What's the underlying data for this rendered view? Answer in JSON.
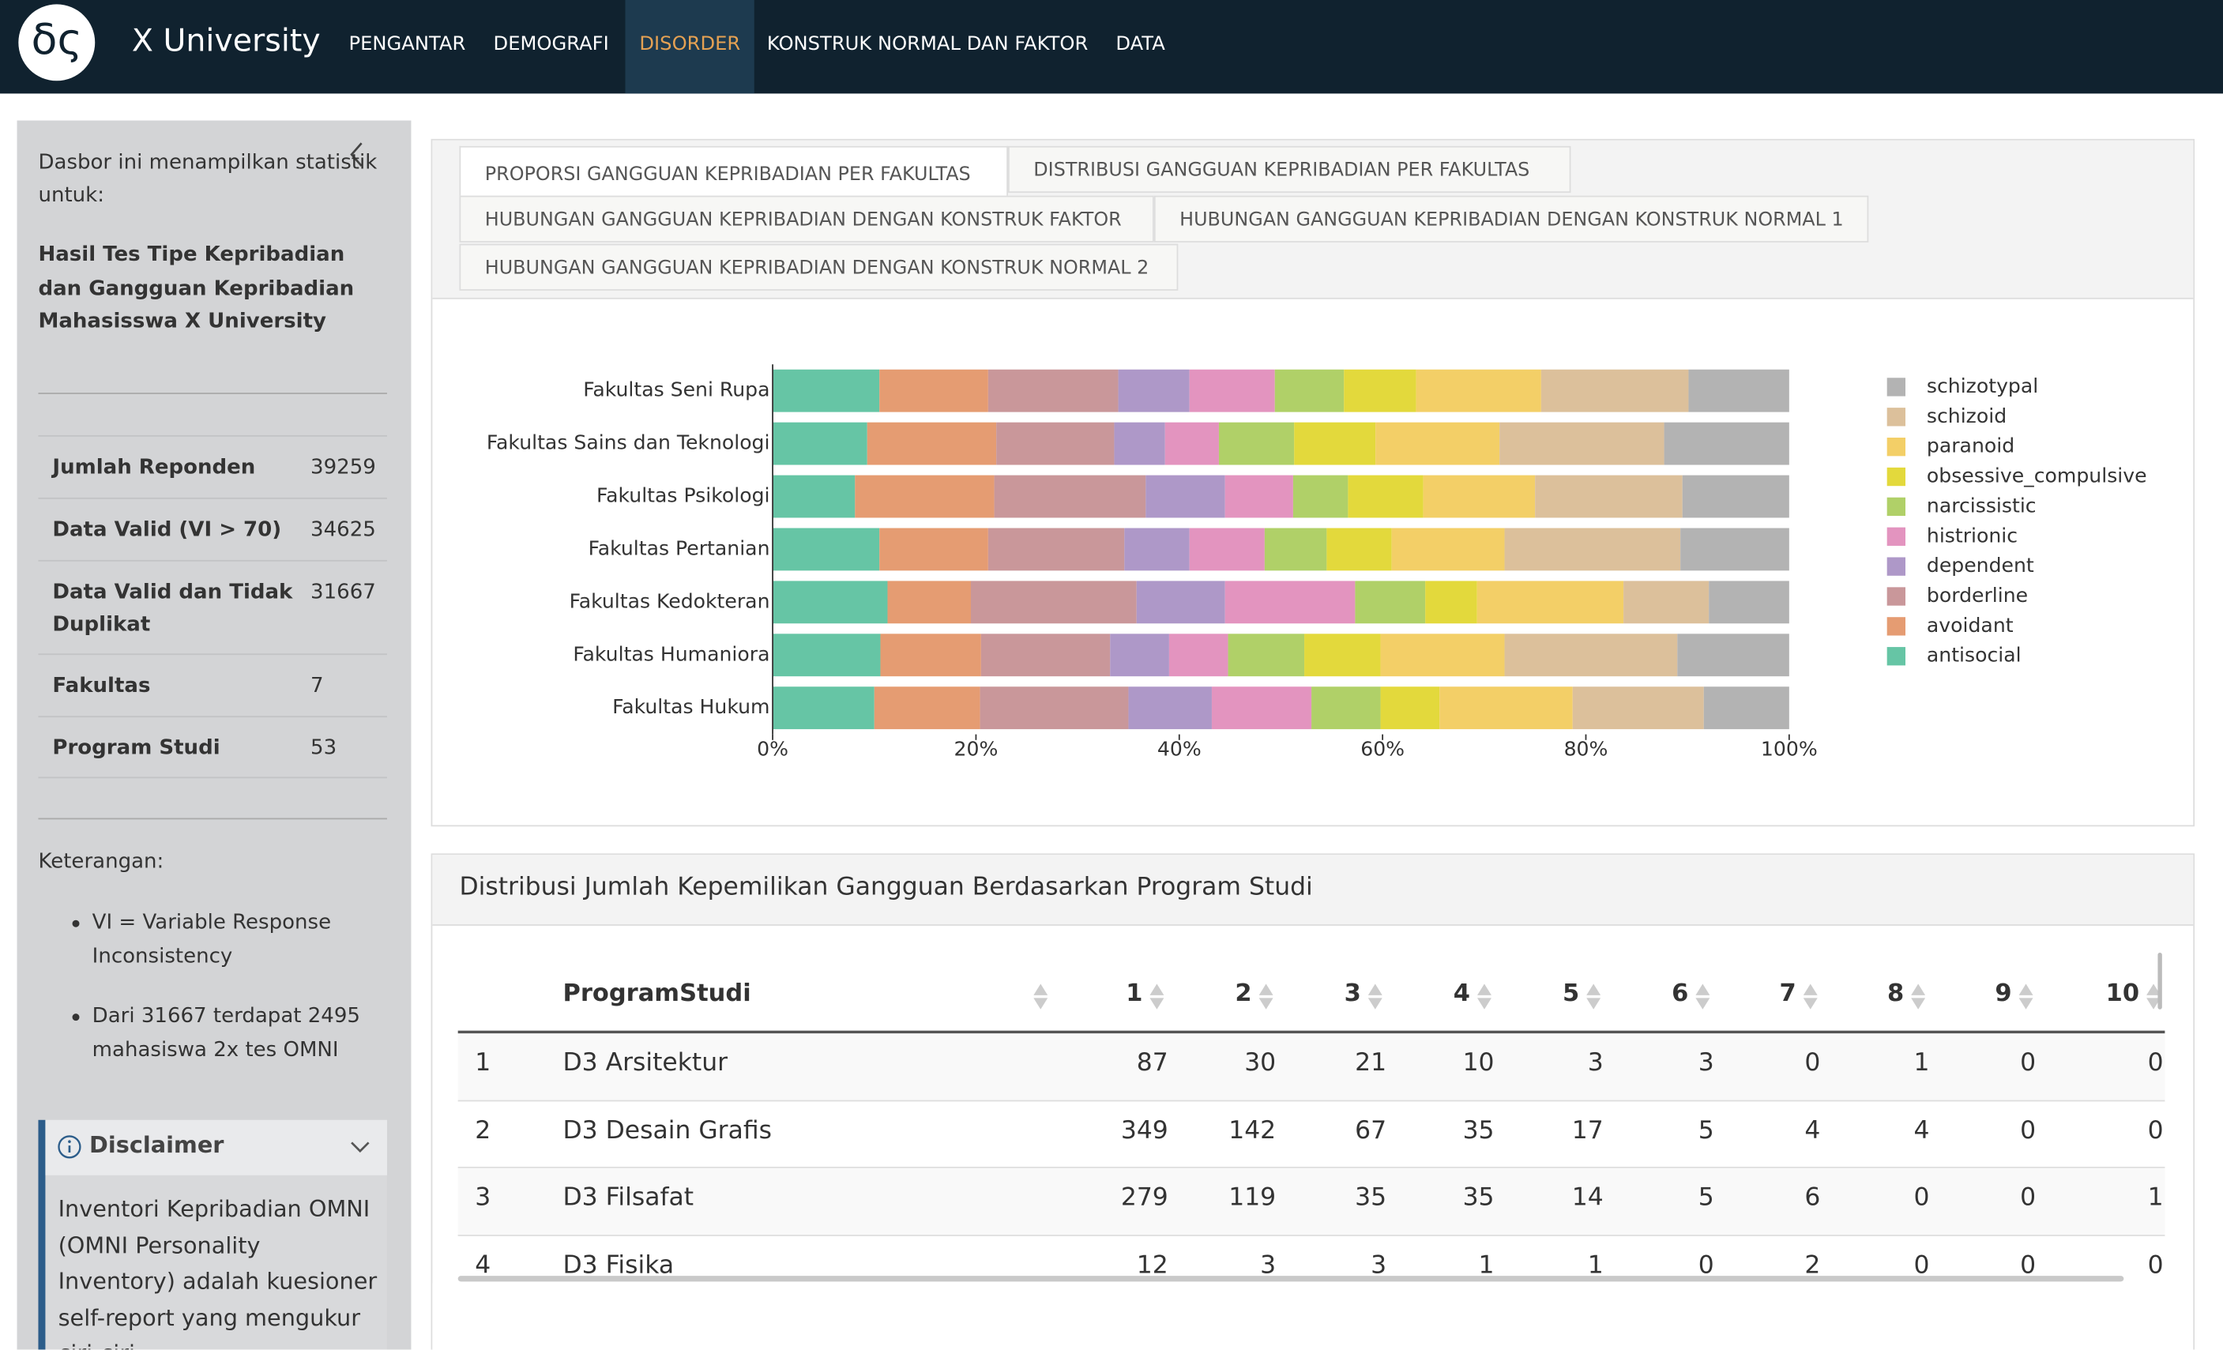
{
  "nav": {
    "logo": "δς",
    "brand": "X University",
    "items": [
      "PENGANTAR",
      "DEMOGRAFI",
      "DISORDER",
      "KONSTRUK NORMAL DAN FAKTOR",
      "DATA"
    ],
    "active": 2
  },
  "sidebar": {
    "intro": "Dasbor ini menampilkan statistik untuk:",
    "subject": "Hasil Tes Tipe Kepribadian dan Gangguan Kepribadian Mahasisswa X University",
    "stats": [
      {
        "label": "Jumlah Reponden",
        "value": "39259"
      },
      {
        "label": "Data Valid (VI > 70)",
        "value": "34625"
      },
      {
        "label": "Data Valid dan Tidak Duplikat",
        "value": "31667"
      },
      {
        "label": "Fakultas",
        "value": "7"
      },
      {
        "label": "Program Studi",
        "value": "53"
      }
    ],
    "notes_title": "Keterangan:",
    "notes": [
      "VI = Variable Response Inconsistency",
      "Dari 31667 terdapat 2495 mahasiswa 2x tes OMNI"
    ],
    "disclaimer": {
      "title": "Disclaimer",
      "body": "Inventori Kepribadian OMNI (OMNI Personality Inventory) adalah kuesioner self-report yang mengukur ciri-ciri"
    }
  },
  "tabs": [
    "PROPORSI GANGGUAN KEPRIBADIAN PER FAKULTAS",
    "DISTRIBUSI GANGGUAN KEPRIBADIAN PER FAKULTAS",
    "HUBUNGAN GANGGUAN KEPRIBADIAN DENGAN KONSTRUK FAKTOR",
    "HUBUNGAN GANGGUAN KEPRIBADIAN DENGAN KONSTRUK NORMAL 1",
    "HUBUNGAN GANGGUAN KEPRIBADIAN DENGAN KONSTRUK NORMAL 2"
  ],
  "chart_data": {
    "type": "bar",
    "orientation": "horizontal",
    "stacked": true,
    "legend": "right",
    "categories": [
      "Fakultas Seni Rupa",
      "Fakultas Sains dan Teknologi",
      "Fakultas Psikologi",
      "Fakultas Pertanian",
      "Fakultas Kedokteran",
      "Fakultas Humaniora",
      "Fakultas Hukum"
    ],
    "series": [
      {
        "name": "antisocial",
        "color": "#66c5a5",
        "values": [
          10.5,
          9.3,
          8.1,
          10.5,
          11.3,
          10.6,
          10.0
        ]
      },
      {
        "name": "avoidant",
        "color": "#e59c72",
        "values": [
          10.7,
          12.7,
          13.7,
          10.7,
          8.2,
          9.9,
          10.4
        ]
      },
      {
        "name": "borderline",
        "color": "#c9979a",
        "values": [
          12.8,
          11.6,
          14.9,
          13.4,
          16.3,
          12.7,
          14.6
        ]
      },
      {
        "name": "dependent",
        "color": "#ae98c8",
        "values": [
          7.0,
          5.0,
          7.8,
          6.4,
          8.7,
          5.8,
          8.2
        ]
      },
      {
        "name": "histrionic",
        "color": "#e394bf",
        "values": [
          8.4,
          5.3,
          6.7,
          7.4,
          12.8,
          5.8,
          9.8
        ]
      },
      {
        "name": "narcissistic",
        "color": "#b0d068",
        "values": [
          6.8,
          7.4,
          5.4,
          6.1,
          6.9,
          7.5,
          6.8
        ]
      },
      {
        "name": "obsessive_compulsive",
        "color": "#e3d93c",
        "values": [
          7.1,
          8.0,
          7.4,
          6.4,
          5.1,
          7.5,
          5.8
        ]
      },
      {
        "name": "paranoid",
        "color": "#f3cf67",
        "values": [
          12.3,
          12.2,
          11.0,
          11.1,
          14.4,
          12.2,
          13.1
        ]
      },
      {
        "name": "schizoid",
        "color": "#dcc09b",
        "values": [
          14.5,
          16.2,
          14.5,
          17.3,
          8.4,
          17.0,
          12.9
        ]
      },
      {
        "name": "schizotypal",
        "color": "#b3b3b3",
        "values": [
          9.9,
          12.3,
          10.5,
          10.7,
          7.9,
          11.0,
          8.4
        ]
      }
    ],
    "xlim": [
      0,
      100
    ],
    "xticks": [
      {
        "value": 0,
        "label": "0%"
      },
      {
        "value": 20,
        "label": "20%"
      },
      {
        "value": 40,
        "label": "40%"
      },
      {
        "value": 60,
        "label": "60%"
      },
      {
        "value": 80,
        "label": "80%"
      },
      {
        "value": 100,
        "label": "100%"
      }
    ]
  },
  "table": {
    "title": "Distribusi Jumlah Kepemilikan Gangguan Berdasarkan Program Studi",
    "columns": [
      "ProgramStudi",
      "1",
      "2",
      "3",
      "4",
      "5",
      "6",
      "7",
      "8",
      "9",
      "10"
    ],
    "rows": [
      [
        "1",
        "D3 Arsitektur",
        "87",
        "30",
        "21",
        "10",
        "3",
        "3",
        "0",
        "1",
        "0",
        "0"
      ],
      [
        "2",
        "D3 Desain Grafis",
        "349",
        "142",
        "67",
        "35",
        "17",
        "5",
        "4",
        "4",
        "0",
        "0"
      ],
      [
        "3",
        "D3 Filsafat",
        "279",
        "119",
        "35",
        "35",
        "14",
        "5",
        "6",
        "0",
        "0",
        "1"
      ],
      [
        "4",
        "D3 Fisika",
        "12",
        "3",
        "3",
        "1",
        "1",
        "0",
        "2",
        "0",
        "0",
        "0"
      ]
    ]
  }
}
